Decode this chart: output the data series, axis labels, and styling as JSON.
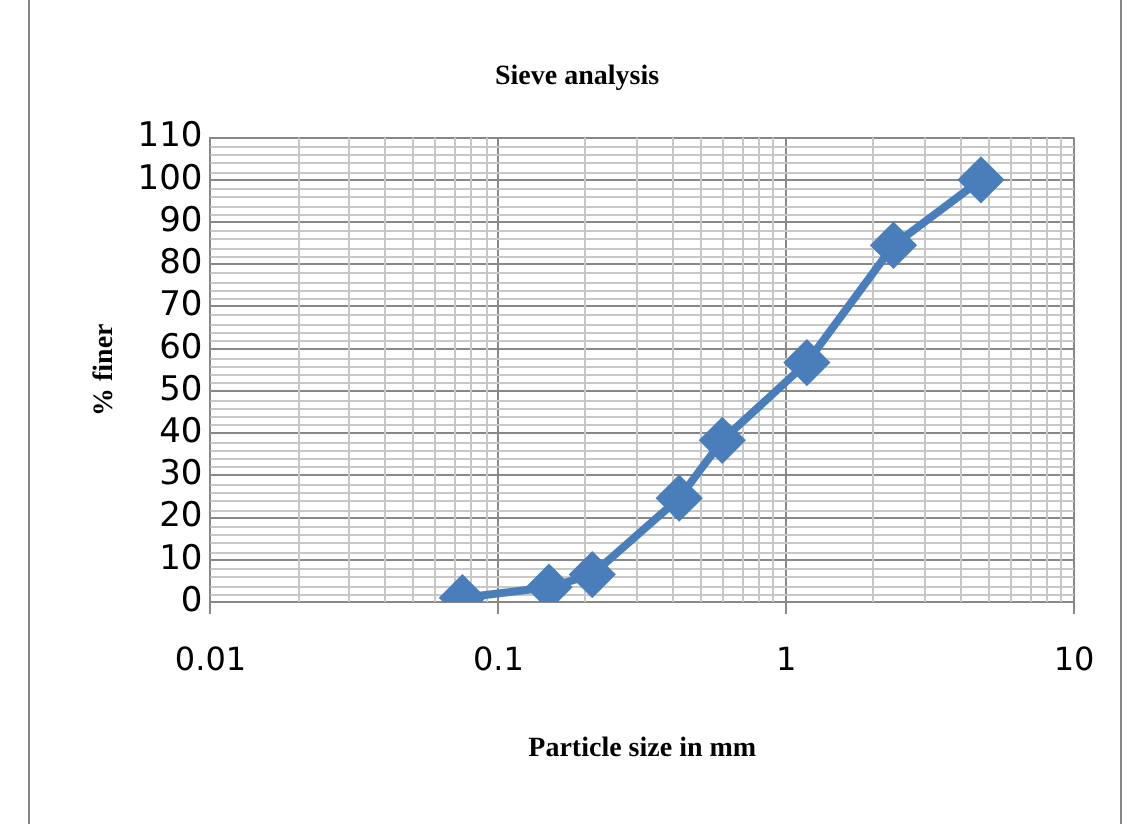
{
  "chart_data": {
    "type": "line",
    "title": "Sieve analysis",
    "xlabel": "Particle size in mm",
    "ylabel": "% finer",
    "x": [
      0.075,
      0.15,
      0.212,
      0.425,
      0.6,
      1.18,
      2.36,
      4.75
    ],
    "series": [
      {
        "color": "#4a7ebb",
        "values": [
          1,
          3.5,
          6.5,
          24.6,
          38.3,
          56.7,
          84.5,
          100
        ]
      }
    ],
    "log": "x",
    "xlim": [
      0.01,
      10
    ],
    "xticks": [
      0.01,
      0.1,
      1,
      10
    ],
    "ylim": [
      0,
      110
    ],
    "yticks": [
      0,
      10,
      20,
      30,
      40,
      50,
      60,
      70,
      80,
      90,
      100,
      110
    ],
    "grid": true,
    "legend": false,
    "marker": "diamond",
    "line_style": "solid"
  }
}
